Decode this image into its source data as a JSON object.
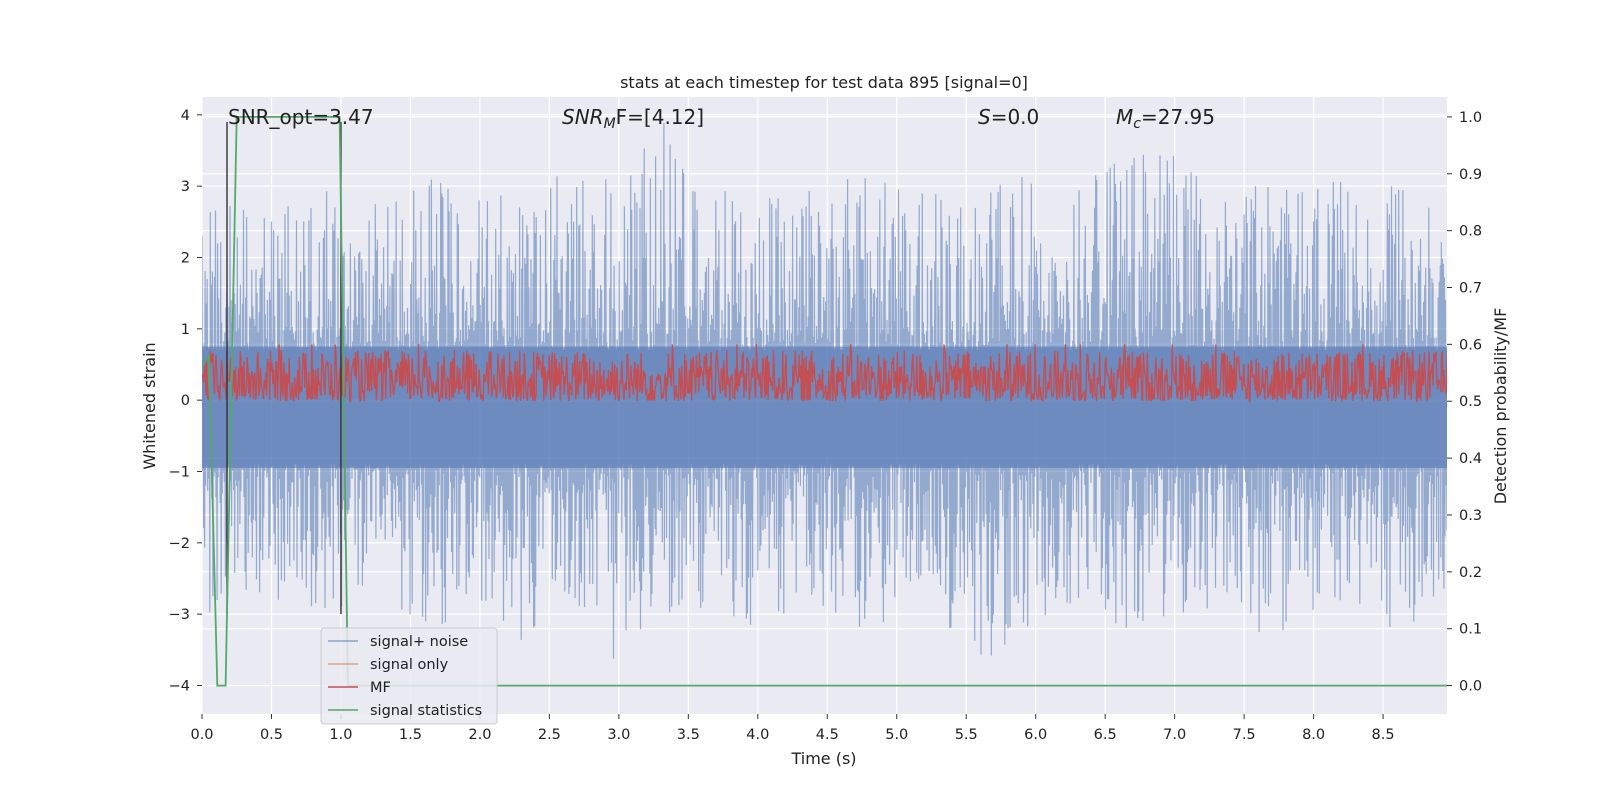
{
  "chart_data": {
    "type": "line",
    "title": "stats at each timestep for test data 895 [signal=0]",
    "xlabel": "Time (s)",
    "ylabel_left": "Whitened strain",
    "ylabel_right": "Detection probability/MF",
    "xlim": [
      0.0,
      8.96
    ],
    "ylim_left": [
      -4.4,
      4.25
    ],
    "ylim_right": [
      -0.05,
      1.035
    ],
    "x_ticks": [
      "0.0",
      "0.5",
      "1.0",
      "1.5",
      "2.0",
      "2.5",
      "3.0",
      "3.5",
      "4.0",
      "4.5",
      "5.0",
      "5.5",
      "6.0",
      "6.5",
      "7.0",
      "7.5",
      "8.0",
      "8.5"
    ],
    "y_ticks_left": [
      "−4",
      "−3",
      "−2",
      "−1",
      "0",
      "1",
      "2",
      "3",
      "4"
    ],
    "y_ticks_right": [
      "0.0",
      "0.1",
      "0.2",
      "0.3",
      "0.4",
      "0.5",
      "0.6",
      "0.7",
      "0.8",
      "0.9",
      "1.0"
    ],
    "grid": true,
    "legend_position": "lower-left",
    "annotations": {
      "snr_opt": "SNR_opt=3.47",
      "snr_mf_symbol": "SNR",
      "snr_mf_sub": "M",
      "snr_mf_value": "F=[4.12]",
      "s_symbol": "S",
      "s_value": "=0.0",
      "mc_symbol": "M",
      "mc_sub": "c",
      "mc_value": "=27.95"
    },
    "series": [
      {
        "name": "signal+ noise",
        "color": "#4c72b0",
        "axis": "left",
        "envelope_upper": [
          2.6,
          2.8,
          3.0,
          2.9,
          2.7,
          3.1,
          2.8,
          3.0,
          3.4,
          3.0,
          3.9,
          3.0,
          2.8,
          2.9,
          3.1,
          3.2,
          3.0,
          2.9,
          3.3,
          3.0,
          3.4,
          3.5,
          3.0,
          3.0,
          2.9,
          3.2,
          3.0,
          2.5
        ],
        "envelope_lower": [
          -3.1,
          -2.7,
          -2.9,
          -3.0,
          -2.8,
          -3.2,
          -2.9,
          -3.4,
          -2.7,
          -3.7,
          -3.0,
          -2.9,
          -3.3,
          -2.8,
          -3.5,
          -3.0,
          -3.0,
          -3.9,
          -3.1,
          -2.8,
          -3.2,
          -3.0,
          -2.9,
          -3.4,
          -3.0,
          -2.8,
          -3.3,
          -2.6
        ]
      },
      {
        "name": "signal only",
        "color": "#dd8452",
        "axis": "left",
        "values": []
      },
      {
        "name": "MF",
        "color": "#c44e52",
        "axis": "right",
        "band": [
          0.5,
          0.59
        ]
      },
      {
        "name": "signal statistics",
        "color": "#55a868",
        "axis": "right",
        "x": [
          0.0,
          0.05,
          0.11,
          0.17,
          0.25,
          0.99,
          1.05,
          1.12,
          8.96
        ],
        "values": [
          0.56,
          0.58,
          0.0,
          0.0,
          1.0,
          1.0,
          0.0,
          0.0,
          0.0
        ]
      }
    ],
    "vertical_markers_x": [
      0.18,
      1.0
    ]
  }
}
